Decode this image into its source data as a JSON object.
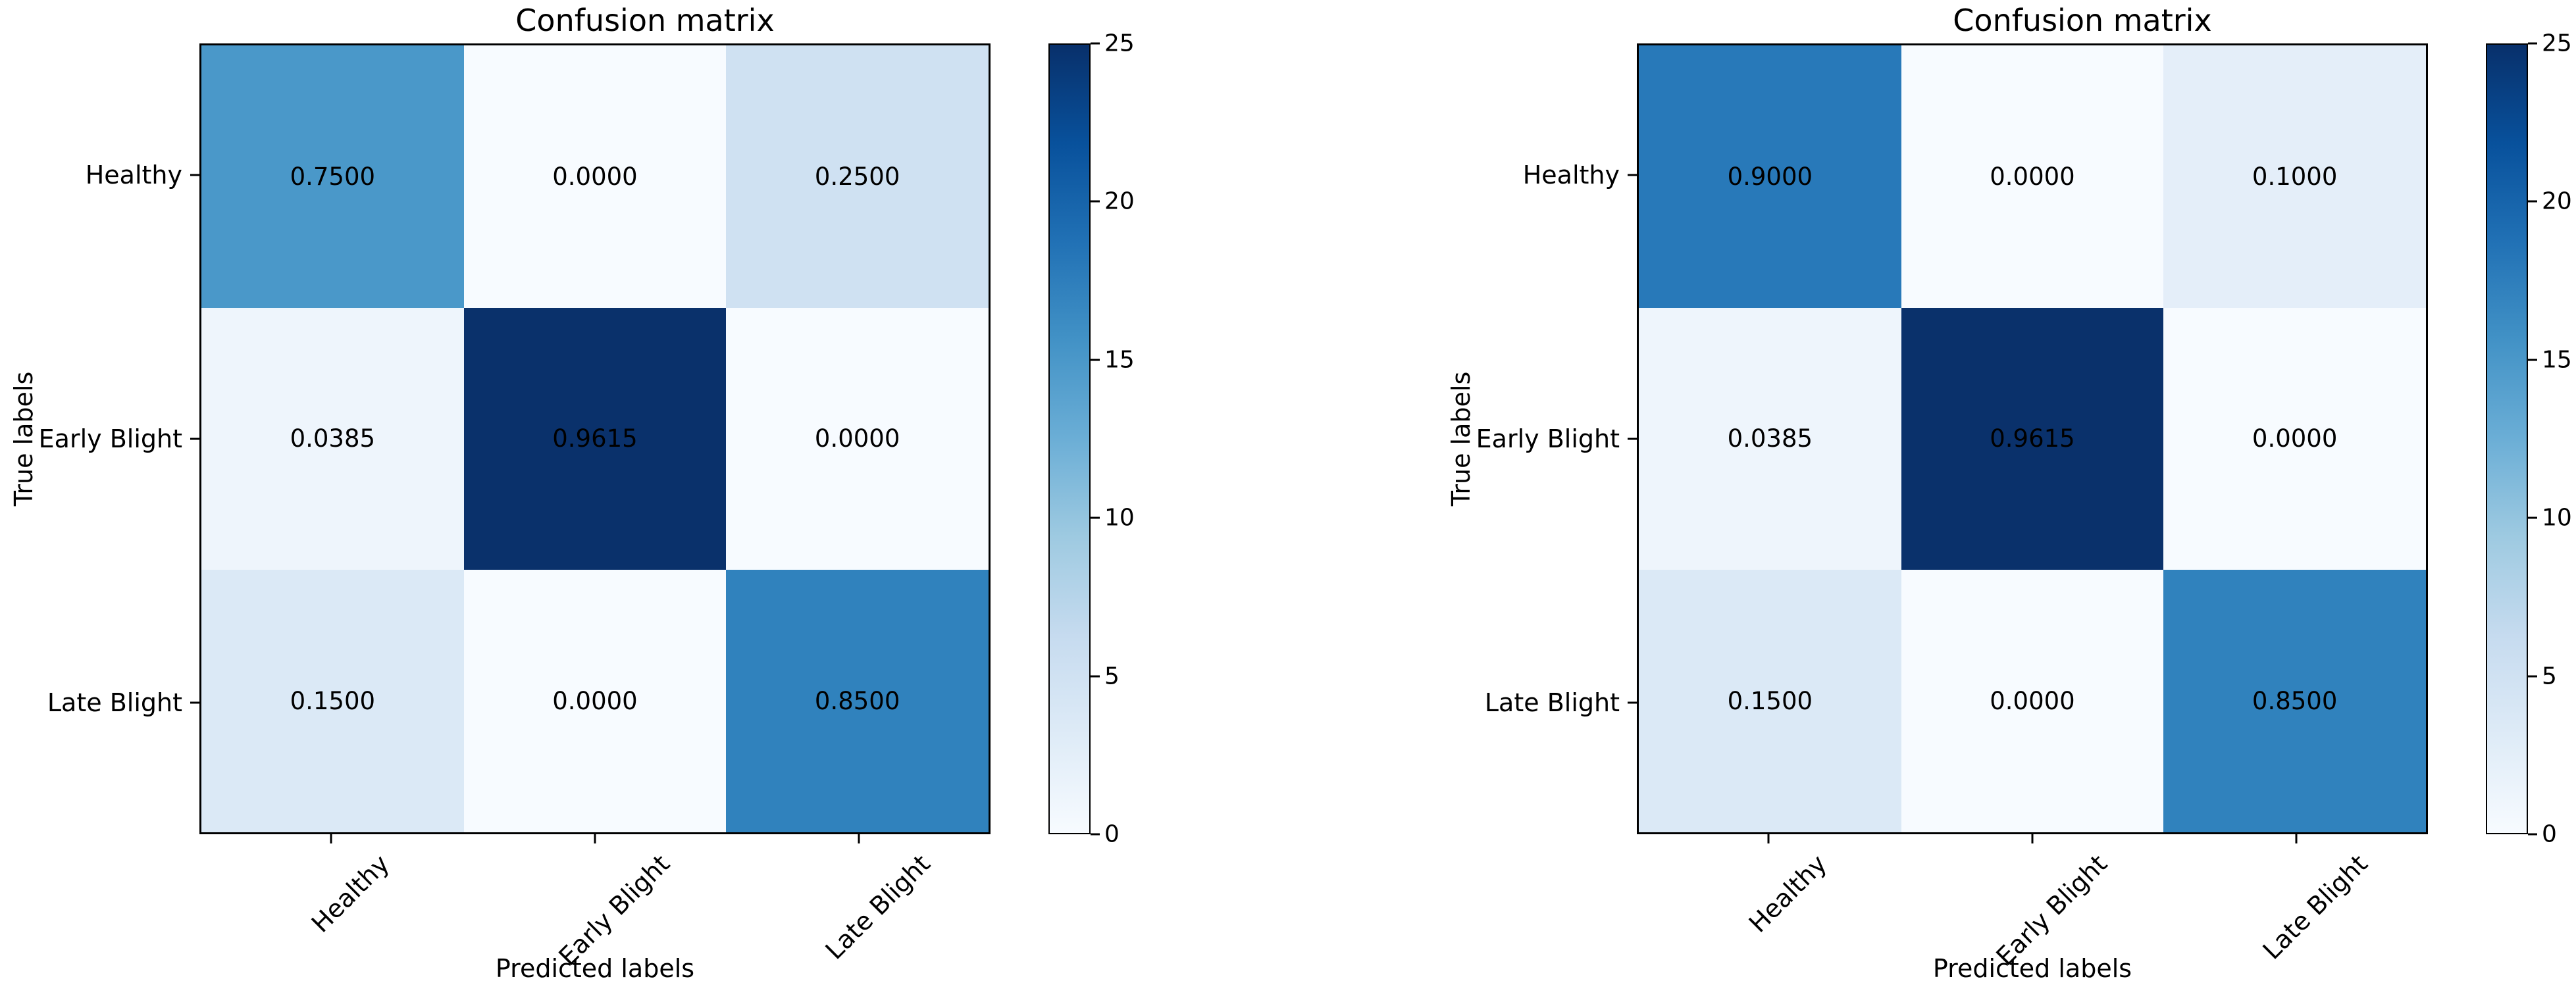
{
  "figure": {
    "background": "#ffffff",
    "text_color": "#000000"
  },
  "chart_data": [
    {
      "type": "heatmap",
      "title": "Confusion matrix",
      "xlabel": "Predicted labels",
      "ylabel": "True labels",
      "x_tick_labels": [
        "Healthy",
        "Early Blight",
        "Late Blight"
      ],
      "y_tick_labels": [
        "Healthy",
        "Early Blight",
        "Late Blight"
      ],
      "cell_text": [
        [
          "0.7500",
          "0.0000",
          "0.2500"
        ],
        [
          "0.0385",
          "0.9615",
          "0.0000"
        ],
        [
          "0.1500",
          "0.0000",
          "0.8500"
        ]
      ],
      "cell_values": [
        [
          0.75,
          0.0,
          0.25
        ],
        [
          0.0385,
          0.9615,
          0.0
        ],
        [
          0.15,
          0.0,
          0.85
        ]
      ],
      "cell_colors": [
        [
          "#4a98c9",
          "#f7fbff",
          "#cfe1f2"
        ],
        [
          "#eef5fc",
          "#0a316b",
          "#f7fbff"
        ],
        [
          "#dbe9f6",
          "#f7fbff",
          "#3082bd"
        ]
      ],
      "colorbar": {
        "min": 0,
        "max": 25,
        "ticks": [
          "0",
          "5",
          "10",
          "15",
          "20",
          "25"
        ],
        "gradient": [
          "#f7fbff",
          "#deebf7",
          "#c6dbef",
          "#9ecae1",
          "#6baed6",
          "#4292c6",
          "#2171b5",
          "#08519c",
          "#08306b"
        ]
      },
      "grid": false,
      "x_tick_rotation": 45
    },
    {
      "type": "heatmap",
      "title": "Confusion matrix",
      "xlabel": "Predicted labels",
      "ylabel": "True labels",
      "x_tick_labels": [
        "Healthy",
        "Early Blight",
        "Late Blight"
      ],
      "y_tick_labels": [
        "Healthy",
        "Early Blight",
        "Late Blight"
      ],
      "cell_text": [
        [
          "0.9000",
          "0.0000",
          "0.1000"
        ],
        [
          "0.0385",
          "0.9615",
          "0.0000"
        ],
        [
          "0.1500",
          "0.0000",
          "0.8500"
        ]
      ],
      "cell_values": [
        [
          0.9,
          0.0,
          0.1
        ],
        [
          0.0385,
          0.9615,
          0.0
        ],
        [
          0.15,
          0.0,
          0.85
        ]
      ],
      "cell_colors": [
        [
          "#2879b9",
          "#f7fbff",
          "#e4eef9"
        ],
        [
          "#eef5fc",
          "#0a316b",
          "#f7fbff"
        ],
        [
          "#dbe9f6",
          "#f7fbff",
          "#3082bd"
        ]
      ],
      "colorbar": {
        "min": 0,
        "max": 25,
        "ticks": [
          "0",
          "5",
          "10",
          "15",
          "20",
          "25"
        ],
        "gradient": [
          "#f7fbff",
          "#deebf7",
          "#c6dbef",
          "#9ecae1",
          "#6baed6",
          "#4292c6",
          "#2171b5",
          "#08519c",
          "#08306b"
        ]
      },
      "grid": false,
      "x_tick_rotation": 45
    }
  ]
}
